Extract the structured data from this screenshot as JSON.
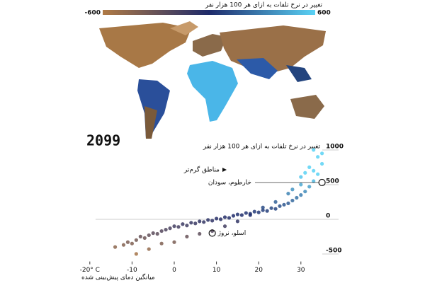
{
  "chart_data": {
    "type": "scatter",
    "year": "2099",
    "colorbar": {
      "title": "تغییر در نرخ تلفات به ازای هر 100 هزار نفر",
      "range": [
        -600,
        600
      ],
      "ticks": [
        -600,
        600
      ],
      "colors": [
        "#b07a45",
        "#1e2a6a",
        "#5ad2f5"
      ]
    },
    "y_label": "تغییر در نرخ تلفات به ازای هر 100 هزار نفر",
    "x_label": "میانگین دمای پیش‌بینی شده",
    "arrow_note": "مناطق گرم‌تر",
    "xlim": [
      -22,
      37
    ],
    "ylim": [
      -700,
      1000
    ],
    "xticks": [
      {
        "value": -20,
        "label": "-20° C"
      },
      -10,
      0,
      10,
      20,
      30
    ],
    "yticks": [
      -500,
      0,
      500,
      1000
    ],
    "x": [
      -14,
      -12,
      -11,
      -10,
      -9,
      -8,
      -7,
      -6,
      -5,
      -4,
      -3,
      -2,
      -1,
      0,
      1,
      2,
      3,
      4,
      5,
      6,
      7,
      8,
      9,
      10,
      11,
      12,
      13,
      14,
      15,
      16,
      17,
      18,
      19,
      20,
      21,
      22,
      23,
      24,
      25,
      26,
      27,
      28,
      29,
      30,
      31,
      32,
      33,
      34,
      35,
      -9,
      -6,
      -3,
      0,
      3,
      6,
      9,
      12,
      15,
      18,
      21,
      24,
      27,
      30,
      33,
      35,
      28,
      30,
      32,
      34,
      31,
      33
    ],
    "y": [
      -450,
      -420,
      -380,
      -400,
      -350,
      -300,
      -320,
      -280,
      -250,
      -260,
      -220,
      -200,
      -180,
      -150,
      -160,
      -120,
      -140,
      -100,
      -110,
      -80,
      -90,
      -60,
      -70,
      -40,
      -50,
      -20,
      -30,
      0,
      20,
      10,
      40,
      30,
      60,
      50,
      80,
      70,
      110,
      100,
      140,
      160,
      180,
      220,
      260,
      300,
      350,
      420,
      500,
      600,
      750,
      -550,
      -480,
      -400,
      -380,
      -300,
      -260,
      -220,
      -150,
      -80,
      10,
      120,
      200,
      320,
      450,
      650,
      900,
      380,
      560,
      700,
      850,
      620,
      950
    ],
    "annotations": [
      {
        "text": "خارطوم، سودان",
        "x": 35,
        "y": 480
      },
      {
        "text": "اسلو، نروژ",
        "x": 9,
        "y": -250
      }
    ]
  }
}
